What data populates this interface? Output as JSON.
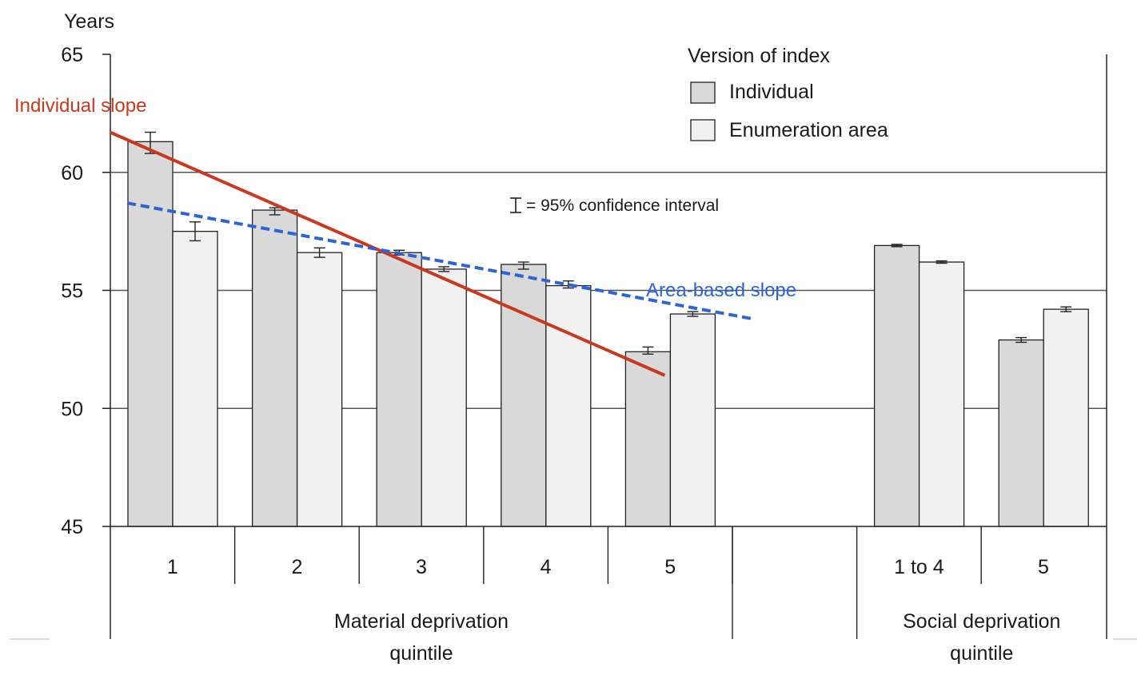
{
  "chart_data": {
    "type": "bar",
    "ylabel": "Years",
    "ylim": [
      45,
      65
    ],
    "yticks": [
      45,
      50,
      55,
      60,
      65
    ],
    "legend": {
      "title": "Version of index",
      "entries": [
        "Individual",
        "Enumeration area"
      ]
    },
    "note": "= 95% confidence interval",
    "groups": [
      {
        "label": "Material deprivation quintile",
        "label_lines": [
          "Material deprivation",
          "quintile"
        ],
        "categories": [
          "1",
          "2",
          "3",
          "4",
          "5"
        ],
        "series": [
          {
            "name": "Individual",
            "values": [
              61.3,
              58.4,
              56.6,
              56.1,
              52.4
            ],
            "ci": [
              [
                60.8,
                61.7
              ],
              [
                58.2,
                58.5
              ],
              [
                56.5,
                56.7
              ],
              [
                55.9,
                56.2
              ],
              [
                52.3,
                52.6
              ]
            ]
          },
          {
            "name": "Enumeration area",
            "values": [
              57.5,
              56.6,
              55.9,
              55.2,
              54.0
            ],
            "ci": [
              [
                57.1,
                57.9
              ],
              [
                56.4,
                56.8
              ],
              [
                55.8,
                56.0
              ],
              [
                55.1,
                55.4
              ],
              [
                53.9,
                54.1
              ]
            ]
          }
        ]
      },
      {
        "label": "Social deprivation quintile",
        "label_lines": [
          "Social deprivation",
          "quintile"
        ],
        "categories": [
          "1 to 4",
          "5"
        ],
        "series": [
          {
            "name": "Individual",
            "values": [
              56.9,
              52.9
            ],
            "ci": [
              [
                56.85,
                56.95
              ],
              [
                52.8,
                53.0
              ]
            ]
          },
          {
            "name": "Enumeration area",
            "values": [
              56.2,
              54.2
            ],
            "ci": [
              [
                56.15,
                56.25
              ],
              [
                54.1,
                54.3
              ]
            ]
          }
        ]
      }
    ],
    "annotations": {
      "individual_slope": {
        "label": "Individual slope",
        "color": "#c8391f",
        "from": [
          0.35,
          61.7
        ],
        "to": [
          4.45,
          51.4
        ]
      },
      "area_slope": {
        "label": "Area-based slope",
        "color": "#2e63d6",
        "from": [
          0.2,
          58.7
        ],
        "to": [
          5.35,
          53.8
        ]
      }
    },
    "colors": {
      "individual": "#d9d9d9",
      "enumeration_area": "#f1f1f1",
      "bar_stroke": "#222222",
      "grid": "#555555"
    }
  }
}
